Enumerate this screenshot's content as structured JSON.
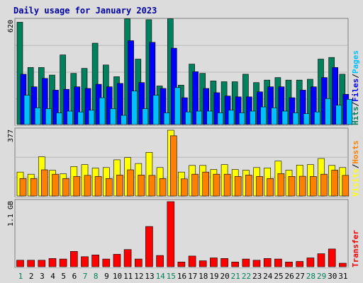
{
  "title": "Daily usage for January 2023",
  "colors": {
    "background": "#dcdcdc",
    "title": "#0000a0",
    "hits": "#00805c",
    "files": "#0000ff",
    "pages": "#00c0ff",
    "visits": "#ffff00",
    "hosts": "#ff8000",
    "transfer": "#ff0000",
    "weekend_day": "#00805c",
    "weekday_day": "#000000",
    "grid": "#b8b8b8"
  },
  "chart_data": [
    {
      "type": "bar",
      "panel": "hits-files-pages",
      "y_tick_label": "620",
      "ylim": [
        0,
        620
      ],
      "right_labels": [
        {
          "text": "Hits",
          "color": "#00805c"
        },
        {
          "text": "/",
          "color": "#000000"
        },
        {
          "text": "Files",
          "color": "#0000ff"
        },
        {
          "text": "/",
          "color": "#000000"
        },
        {
          "text": "Pages",
          "color": "#00c0ff"
        }
      ],
      "categories": [
        "1",
        "2",
        "3",
        "4",
        "5",
        "6",
        "7",
        "8",
        "9",
        "10",
        "11",
        "12",
        "13",
        "14",
        "15",
        "16",
        "17",
        "18",
        "19",
        "20",
        "21",
        "22",
        "23",
        "24",
        "25",
        "26",
        "27",
        "28",
        "29",
        "30",
        "31"
      ],
      "series": [
        {
          "name": "Hits",
          "color": "#00805c",
          "values": [
            610,
            340,
            340,
            295,
            415,
            305,
            335,
            485,
            355,
            285,
            630,
            390,
            625,
            230,
            630,
            235,
            360,
            305,
            260,
            255,
            255,
            300,
            250,
            265,
            280,
            265,
            265,
            270,
            390,
            400,
            300
          ]
        },
        {
          "name": "Files",
          "color": "#0000ff",
          "values": [
            300,
            225,
            275,
            205,
            210,
            225,
            215,
            240,
            225,
            245,
            500,
            250,
            490,
            215,
            455,
            160,
            315,
            215,
            190,
            170,
            165,
            165,
            195,
            225,
            225,
            160,
            205,
            225,
            280,
            340,
            180
          ]
        },
        {
          "name": "Pages",
          "color": "#00c0ff",
          "values": [
            175,
            100,
            95,
            70,
            80,
            75,
            85,
            160,
            95,
            55,
            200,
            95,
            175,
            70,
            220,
            75,
            80,
            80,
            70,
            85,
            70,
            80,
            105,
            100,
            80,
            70,
            65,
            75,
            155,
            115,
            150
          ]
        }
      ]
    },
    {
      "type": "bar",
      "panel": "visits-hosts",
      "y_tick_label": "377",
      "ylim": [
        0,
        377
      ],
      "right_labels": [
        {
          "text": "Visits",
          "color": "#ffff00"
        },
        {
          "text": "/",
          "color": "#000000"
        },
        {
          "text": "Hosts",
          "color": "#ff8000"
        }
      ],
      "categories": [
        "1",
        "2",
        "3",
        "4",
        "5",
        "6",
        "7",
        "8",
        "9",
        "10",
        "11",
        "12",
        "13",
        "14",
        "15",
        "16",
        "17",
        "18",
        "19",
        "20",
        "21",
        "22",
        "23",
        "24",
        "25",
        "26",
        "27",
        "28",
        "29",
        "30",
        "31"
      ],
      "series": [
        {
          "name": "Visits",
          "color": "#ffff00",
          "values": [
            137,
            125,
            225,
            147,
            127,
            169,
            180,
            160,
            163,
            207,
            220,
            186,
            250,
            163,
            377,
            137,
            175,
            175,
            152,
            180,
            152,
            148,
            163,
            161,
            200,
            148,
            177,
            180,
            215,
            175,
            163
          ]
        },
        {
          "name": "Hosts",
          "color": "#ff8000",
          "values": [
            100,
            100,
            150,
            125,
            100,
            112,
            118,
            112,
            100,
            120,
            150,
            120,
            118,
            100,
            345,
            98,
            125,
            137,
            125,
            125,
            112,
            120,
            112,
            100,
            128,
            112,
            113,
            112,
            125,
            148,
            118
          ]
        }
      ]
    },
    {
      "type": "bar",
      "panel": "transfer",
      "y_tick_label": "1.1 GB",
      "ylim": [
        0,
        1.1
      ],
      "right_labels": [
        {
          "text": "Transfer",
          "color": "#ff0000"
        }
      ],
      "categories": [
        "1",
        "2",
        "3",
        "4",
        "5",
        "6",
        "7",
        "8",
        "9",
        "10",
        "11",
        "12",
        "13",
        "14",
        "15",
        "16",
        "17",
        "18",
        "19",
        "20",
        "21",
        "22",
        "23",
        "24",
        "25",
        "26",
        "27",
        "28",
        "29",
        "30",
        "31"
      ],
      "series": [
        {
          "name": "Transfer",
          "color": "#ff0000",
          "values": [
            0.11,
            0.11,
            0.11,
            0.14,
            0.13,
            0.26,
            0.17,
            0.2,
            0.13,
            0.21,
            0.29,
            0.13,
            0.68,
            0.19,
            1.1,
            0.08,
            0.18,
            0.1,
            0.15,
            0.14,
            0.08,
            0.13,
            0.11,
            0.14,
            0.13,
            0.08,
            0.09,
            0.15,
            0.22,
            0.3,
            0.06
          ]
        }
      ]
    }
  ],
  "days": [
    "1",
    "2",
    "3",
    "4",
    "5",
    "6",
    "7",
    "8",
    "9",
    "10",
    "11",
    "12",
    "13",
    "14",
    "15",
    "16",
    "17",
    "18",
    "19",
    "20",
    "21",
    "22",
    "23",
    "24",
    "25",
    "26",
    "27",
    "28",
    "29",
    "30",
    "31"
  ],
  "weekend_days": [
    1,
    7,
    8,
    14,
    15,
    21,
    22,
    28,
    29
  ]
}
